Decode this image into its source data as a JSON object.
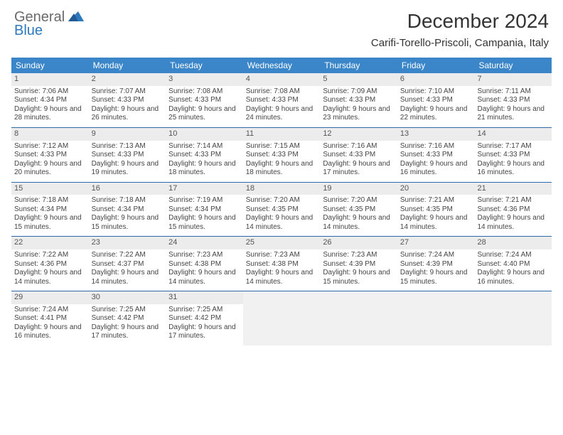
{
  "brand": {
    "general": "General",
    "blue": "Blue"
  },
  "title": "December 2024",
  "location": "Carifi-Torello-Priscoli, Campania, Italy",
  "colors": {
    "header_bg": "#3a86c8",
    "week_divider": "#2e6ba8",
    "daynum_bg": "#ececec",
    "empty_bg": "#f1f1f1",
    "text": "#333333"
  },
  "days_of_week": [
    "Sunday",
    "Monday",
    "Tuesday",
    "Wednesday",
    "Thursday",
    "Friday",
    "Saturday"
  ],
  "weeks": [
    [
      {
        "n": "1",
        "sunrise": "Sunrise: 7:06 AM",
        "sunset": "Sunset: 4:34 PM",
        "daylight": "Daylight: 9 hours and 28 minutes."
      },
      {
        "n": "2",
        "sunrise": "Sunrise: 7:07 AM",
        "sunset": "Sunset: 4:33 PM",
        "daylight": "Daylight: 9 hours and 26 minutes."
      },
      {
        "n": "3",
        "sunrise": "Sunrise: 7:08 AM",
        "sunset": "Sunset: 4:33 PM",
        "daylight": "Daylight: 9 hours and 25 minutes."
      },
      {
        "n": "4",
        "sunrise": "Sunrise: 7:08 AM",
        "sunset": "Sunset: 4:33 PM",
        "daylight": "Daylight: 9 hours and 24 minutes."
      },
      {
        "n": "5",
        "sunrise": "Sunrise: 7:09 AM",
        "sunset": "Sunset: 4:33 PM",
        "daylight": "Daylight: 9 hours and 23 minutes."
      },
      {
        "n": "6",
        "sunrise": "Sunrise: 7:10 AM",
        "sunset": "Sunset: 4:33 PM",
        "daylight": "Daylight: 9 hours and 22 minutes."
      },
      {
        "n": "7",
        "sunrise": "Sunrise: 7:11 AM",
        "sunset": "Sunset: 4:33 PM",
        "daylight": "Daylight: 9 hours and 21 minutes."
      }
    ],
    [
      {
        "n": "8",
        "sunrise": "Sunrise: 7:12 AM",
        "sunset": "Sunset: 4:33 PM",
        "daylight": "Daylight: 9 hours and 20 minutes."
      },
      {
        "n": "9",
        "sunrise": "Sunrise: 7:13 AM",
        "sunset": "Sunset: 4:33 PM",
        "daylight": "Daylight: 9 hours and 19 minutes."
      },
      {
        "n": "10",
        "sunrise": "Sunrise: 7:14 AM",
        "sunset": "Sunset: 4:33 PM",
        "daylight": "Daylight: 9 hours and 18 minutes."
      },
      {
        "n": "11",
        "sunrise": "Sunrise: 7:15 AM",
        "sunset": "Sunset: 4:33 PM",
        "daylight": "Daylight: 9 hours and 18 minutes."
      },
      {
        "n": "12",
        "sunrise": "Sunrise: 7:16 AM",
        "sunset": "Sunset: 4:33 PM",
        "daylight": "Daylight: 9 hours and 17 minutes."
      },
      {
        "n": "13",
        "sunrise": "Sunrise: 7:16 AM",
        "sunset": "Sunset: 4:33 PM",
        "daylight": "Daylight: 9 hours and 16 minutes."
      },
      {
        "n": "14",
        "sunrise": "Sunrise: 7:17 AM",
        "sunset": "Sunset: 4:33 PM",
        "daylight": "Daylight: 9 hours and 16 minutes."
      }
    ],
    [
      {
        "n": "15",
        "sunrise": "Sunrise: 7:18 AM",
        "sunset": "Sunset: 4:34 PM",
        "daylight": "Daylight: 9 hours and 15 minutes."
      },
      {
        "n": "16",
        "sunrise": "Sunrise: 7:18 AM",
        "sunset": "Sunset: 4:34 PM",
        "daylight": "Daylight: 9 hours and 15 minutes."
      },
      {
        "n": "17",
        "sunrise": "Sunrise: 7:19 AM",
        "sunset": "Sunset: 4:34 PM",
        "daylight": "Daylight: 9 hours and 15 minutes."
      },
      {
        "n": "18",
        "sunrise": "Sunrise: 7:20 AM",
        "sunset": "Sunset: 4:35 PM",
        "daylight": "Daylight: 9 hours and 14 minutes."
      },
      {
        "n": "19",
        "sunrise": "Sunrise: 7:20 AM",
        "sunset": "Sunset: 4:35 PM",
        "daylight": "Daylight: 9 hours and 14 minutes."
      },
      {
        "n": "20",
        "sunrise": "Sunrise: 7:21 AM",
        "sunset": "Sunset: 4:35 PM",
        "daylight": "Daylight: 9 hours and 14 minutes."
      },
      {
        "n": "21",
        "sunrise": "Sunrise: 7:21 AM",
        "sunset": "Sunset: 4:36 PM",
        "daylight": "Daylight: 9 hours and 14 minutes."
      }
    ],
    [
      {
        "n": "22",
        "sunrise": "Sunrise: 7:22 AM",
        "sunset": "Sunset: 4:36 PM",
        "daylight": "Daylight: 9 hours and 14 minutes."
      },
      {
        "n": "23",
        "sunrise": "Sunrise: 7:22 AM",
        "sunset": "Sunset: 4:37 PM",
        "daylight": "Daylight: 9 hours and 14 minutes."
      },
      {
        "n": "24",
        "sunrise": "Sunrise: 7:23 AM",
        "sunset": "Sunset: 4:38 PM",
        "daylight": "Daylight: 9 hours and 14 minutes."
      },
      {
        "n": "25",
        "sunrise": "Sunrise: 7:23 AM",
        "sunset": "Sunset: 4:38 PM",
        "daylight": "Daylight: 9 hours and 14 minutes."
      },
      {
        "n": "26",
        "sunrise": "Sunrise: 7:23 AM",
        "sunset": "Sunset: 4:39 PM",
        "daylight": "Daylight: 9 hours and 15 minutes."
      },
      {
        "n": "27",
        "sunrise": "Sunrise: 7:24 AM",
        "sunset": "Sunset: 4:39 PM",
        "daylight": "Daylight: 9 hours and 15 minutes."
      },
      {
        "n": "28",
        "sunrise": "Sunrise: 7:24 AM",
        "sunset": "Sunset: 4:40 PM",
        "daylight": "Daylight: 9 hours and 16 minutes."
      }
    ],
    [
      {
        "n": "29",
        "sunrise": "Sunrise: 7:24 AM",
        "sunset": "Sunset: 4:41 PM",
        "daylight": "Daylight: 9 hours and 16 minutes."
      },
      {
        "n": "30",
        "sunrise": "Sunrise: 7:25 AM",
        "sunset": "Sunset: 4:42 PM",
        "daylight": "Daylight: 9 hours and 17 minutes."
      },
      {
        "n": "31",
        "sunrise": "Sunrise: 7:25 AM",
        "sunset": "Sunset: 4:42 PM",
        "daylight": "Daylight: 9 hours and 17 minutes."
      },
      null,
      null,
      null,
      null
    ]
  ]
}
